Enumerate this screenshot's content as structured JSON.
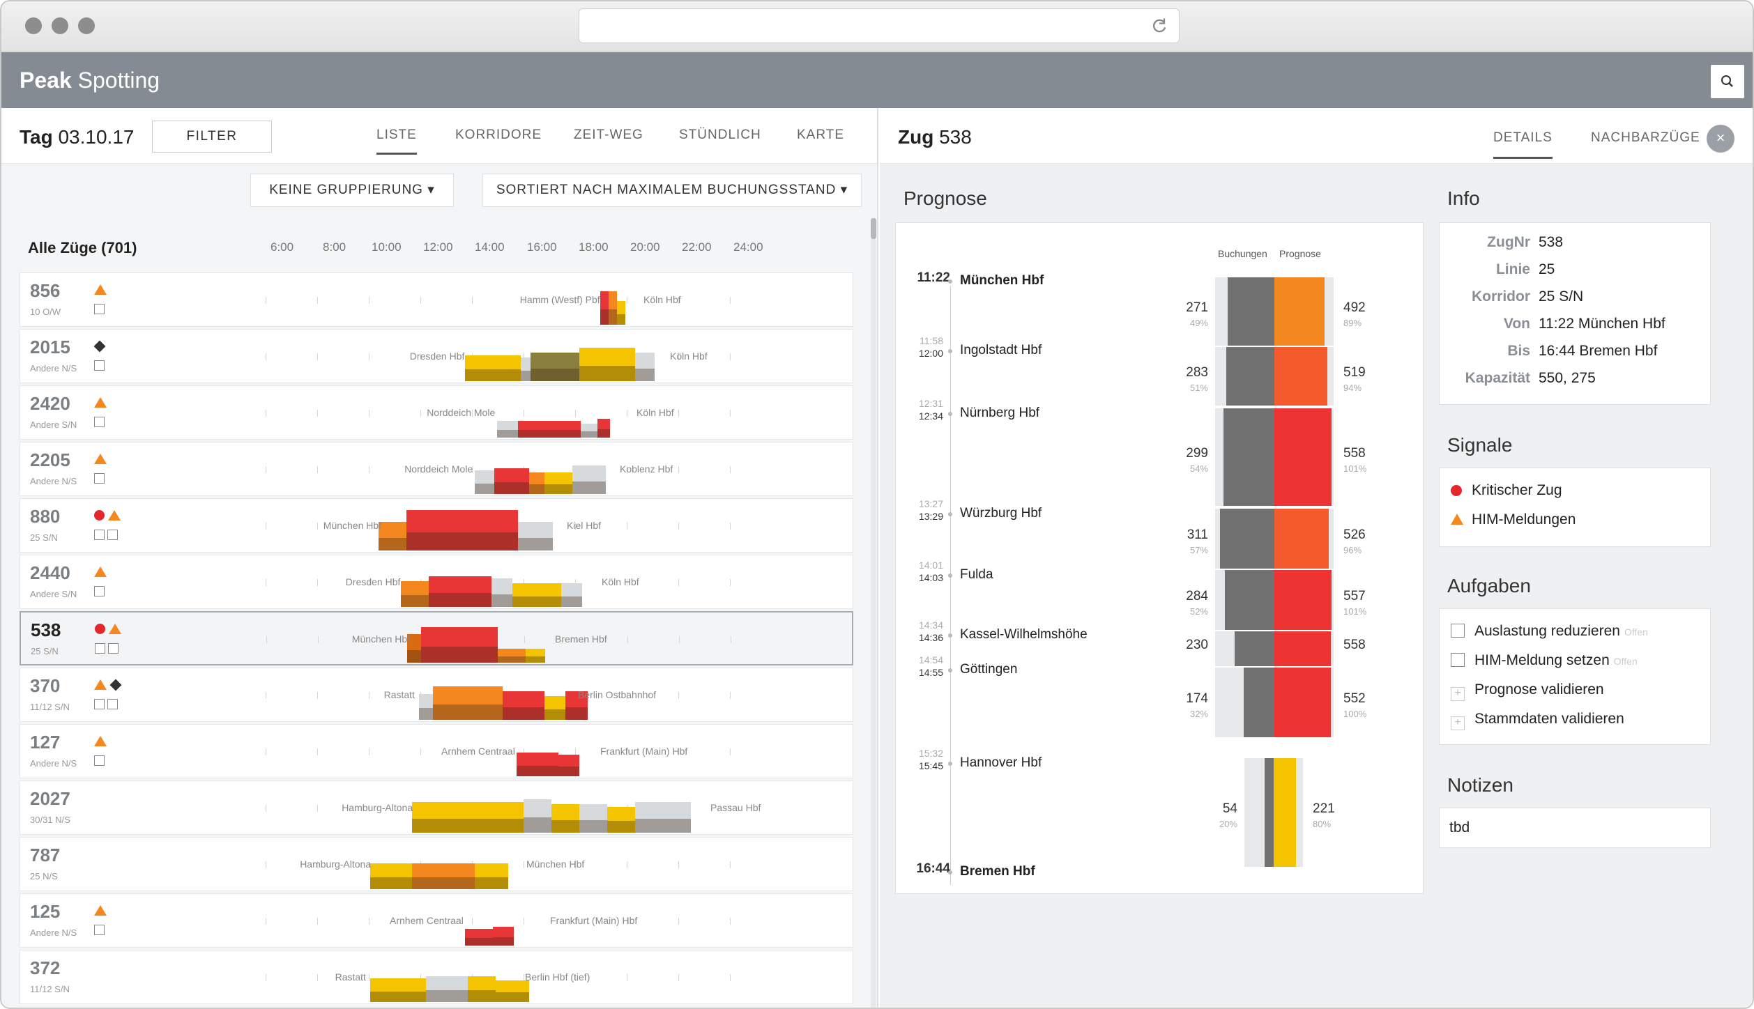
{
  "brand": {
    "bold": "Peak",
    "rest": "Spotting"
  },
  "left": {
    "tag_label": "Tag",
    "date": "03.10.17",
    "filter_label": "FILTER",
    "tabs": [
      "LISTE",
      "KORRIDORE",
      "ZEIT-WEG",
      "STÜNDLICH",
      "KARTE"
    ],
    "grouping_label": "KEINE GRUPPIERUNG",
    "sort_label": "SORTIERT NACH MAXIMALEM BUCHUNGSSTAND",
    "list_title": "Alle Züge (701)",
    "hours": [
      "6:00",
      "8:00",
      "10:00",
      "12:00",
      "14:00",
      "16:00",
      "18:00",
      "20:00",
      "22:00",
      "24:00"
    ],
    "trains": [
      {
        "num": "856",
        "sub": "10 O/W",
        "icons": [
          "warning"
        ],
        "from": "Hamm (Westf) Pbf",
        "to": "Köln Hbf"
      },
      {
        "num": "2015",
        "sub": "Andere N/S",
        "icons": [
          "diamond"
        ],
        "from": "Dresden Hbf",
        "to": "Köln Hbf"
      },
      {
        "num": "2420",
        "sub": "Andere S/N",
        "icons": [
          "warning"
        ],
        "from": "Norddeich Mole",
        "to": "Köln Hbf"
      },
      {
        "num": "2205",
        "sub": "Andere N/S",
        "icons": [
          "warning"
        ],
        "from": "Norddeich Mole",
        "to": "Koblenz Hbf"
      },
      {
        "num": "880",
        "sub": "25 S/N",
        "icons": [
          "error",
          "warning"
        ],
        "from": "München Hbf",
        "to": "Kiel Hbf"
      },
      {
        "num": "2440",
        "sub": "Andere S/N",
        "icons": [
          "warning"
        ],
        "from": "Dresden Hbf",
        "to": "Köln Hbf"
      },
      {
        "num": "538",
        "sub": "25 S/N",
        "icons": [
          "error",
          "warning"
        ],
        "from": "München Hbf",
        "to": "Bremen Hbf"
      },
      {
        "num": "370",
        "sub": "11/12 S/N",
        "icons": [
          "warning",
          "diamond"
        ],
        "from": "Rastatt",
        "to": "Berlin Ostbahnhof"
      },
      {
        "num": "127",
        "sub": "Andere N/S",
        "icons": [
          "warning"
        ],
        "from": "Arnhem Centraal",
        "to": "Frankfurt (Main) Hbf"
      },
      {
        "num": "2027",
        "sub": "30/31 N/S",
        "icons": [],
        "from": "Hamburg-Altona",
        "to": "Passau Hbf"
      },
      {
        "num": "787",
        "sub": "25 N/S",
        "icons": [],
        "from": "Hamburg-Altona",
        "to": "München Hbf"
      },
      {
        "num": "125",
        "sub": "Andere N/S",
        "icons": [
          "warning"
        ],
        "from": "Arnhem Centraal",
        "to": "Frankfurt (Main) Hbf"
      },
      {
        "num": "372",
        "sub": "11/12 S/N",
        "icons": [],
        "from": "Rastatt",
        "to": "Berlin Hbf (tief)"
      }
    ]
  },
  "right": {
    "zug_label": "Zug",
    "zug_num": "538",
    "tabs": [
      "DETAILS",
      "NACHBARZÜGE"
    ],
    "close_icon": "×",
    "prognose_title": "Prognose",
    "col_buchungen": "Buchungen",
    "col_prognose": "Prognose",
    "stops": [
      {
        "name": "München Hbf",
        "arr": "",
        "dep": "11:22",
        "bold": true
      },
      {
        "name": "Ingolstadt Hbf",
        "arr": "11:58",
        "dep": "12:00"
      },
      {
        "name": "Nürnberg Hbf",
        "arr": "12:31",
        "dep": "12:34"
      },
      {
        "name": "Würzburg Hbf",
        "arr": "13:27",
        "dep": "13:29"
      },
      {
        "name": "Fulda",
        "arr": "14:01",
        "dep": "14:03"
      },
      {
        "name": "Kassel-Wilhelmshöhe",
        "arr": "14:34",
        "dep": "14:36"
      },
      {
        "name": "Göttingen",
        "arr": "14:54",
        "dep": "14:55"
      },
      {
        "name": "Hannover Hbf",
        "arr": "15:32",
        "dep": "15:45"
      },
      {
        "name": "Bremen Hbf",
        "arr": "",
        "dep": "16:44",
        "bold": true
      }
    ],
    "segments": [
      {
        "b": "271",
        "bp": "49%",
        "p": "492",
        "pp": "89%"
      },
      {
        "b": "283",
        "bp": "51%",
        "p": "519",
        "pp": "94%"
      },
      {
        "b": "299",
        "bp": "54%",
        "p": "558",
        "pp": "101%"
      },
      {
        "b": "311",
        "bp": "57%",
        "p": "526",
        "pp": "96%"
      },
      {
        "b": "284",
        "bp": "52%",
        "p": "557",
        "pp": "101%"
      },
      {
        "b": "230",
        "bp": "",
        "p": "558",
        "pp": ""
      },
      {
        "b": "174",
        "bp": "32%",
        "p": "552",
        "pp": "100%"
      },
      {
        "b": "54",
        "bp": "20%",
        "p": "221",
        "pp": "80%"
      }
    ],
    "info_title": "Info",
    "info": [
      {
        "k": "ZugNr",
        "v": "538"
      },
      {
        "k": "Linie",
        "v": "25"
      },
      {
        "k": "Korridor",
        "v": "25 S/N"
      },
      {
        "k": "Von",
        "v": "11:22 München Hbf"
      },
      {
        "k": "Bis",
        "v": "16:44 Bremen Hbf"
      },
      {
        "k": "Kapazität",
        "v": "550, 275"
      }
    ],
    "signale_title": "Signale",
    "signale": [
      "Kritischer Zug",
      "HIM-Meldungen"
    ],
    "aufgaben_title": "Aufgaben",
    "aufgaben": [
      {
        "label": "Auslastung reduzieren",
        "status": "Offen"
      },
      {
        "label": "HIM-Meldung setzen",
        "status": "Offen"
      },
      {
        "label": "Prognose validieren",
        "status": ""
      },
      {
        "label": "Stammdaten validieren",
        "status": ""
      }
    ],
    "notizen_title": "Notizen",
    "notizen": "tbd"
  },
  "colors": {
    "header": "#858b92",
    "red": "#ee3333",
    "orange": "#f5871f",
    "yellow": "#f5c400",
    "gray": "#717171"
  }
}
